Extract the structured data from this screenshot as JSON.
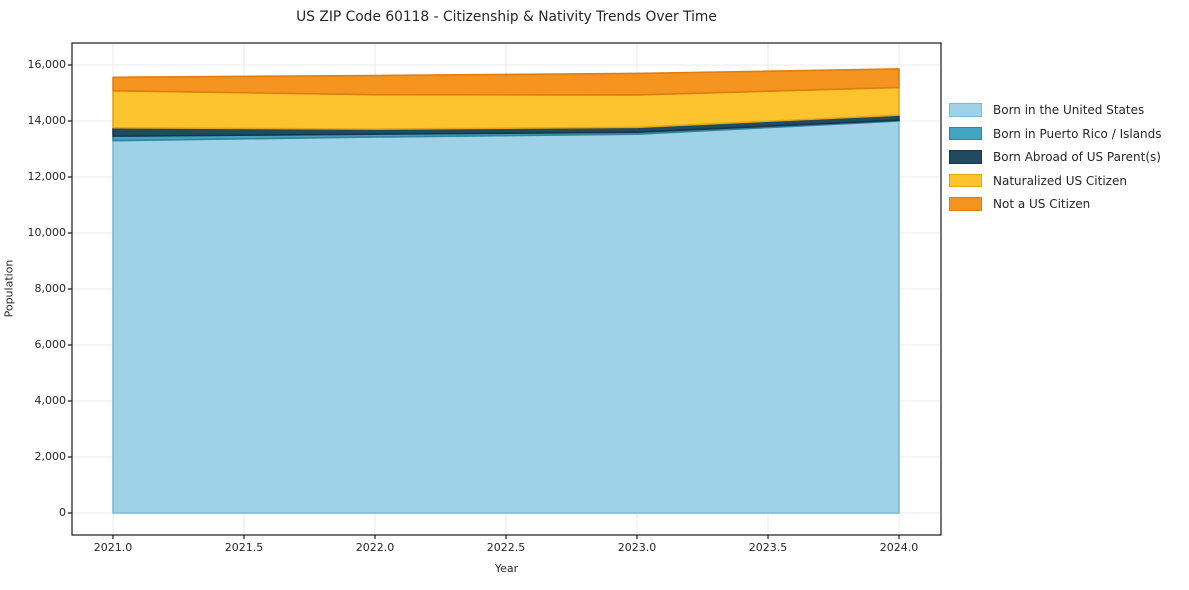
{
  "chart_data": {
    "type": "area",
    "stacked": true,
    "title": "US ZIP Code 60118 - Citizenship & Nativity Trends Over Time",
    "xlabel": "Year",
    "ylabel": "Population",
    "x": [
      2021,
      2022,
      2023,
      2024
    ],
    "series": [
      {
        "name": "Born in the United States",
        "color": "#9fd2e6",
        "edge": "#7cb9d2",
        "values": [
          13300,
          13430,
          13530,
          14000
        ]
      },
      {
        "name": "Born in Puerto Rico / Islands",
        "color": "#41a4c0",
        "edge": "#2f86a0",
        "values": [
          160,
          100,
          70,
          30
        ]
      },
      {
        "name": "Born Abroad of US Parent(s)",
        "color": "#1f4a5f",
        "edge": "#16374a",
        "values": [
          300,
          180,
          175,
          180
        ]
      },
      {
        "name": "Naturalized US Citizen",
        "color": "#fdc32d",
        "edge": "#e2a719",
        "values": [
          1320,
          1230,
          1155,
          990
        ]
      },
      {
        "name": "Not a US Citizen",
        "color": "#f5941f",
        "edge": "#dd7e12",
        "values": [
          480,
          685,
          770,
          660
        ]
      }
    ],
    "xticks": [
      2021.0,
      2021.5,
      2022.0,
      2022.5,
      2023.0,
      2023.5,
      2024.0
    ],
    "xtick_labels": [
      "2021.0",
      "2021.5",
      "2022.0",
      "2022.5",
      "2023.0",
      "2023.5",
      "2024.0"
    ],
    "yticks": [
      0,
      2000,
      4000,
      6000,
      8000,
      10000,
      12000,
      14000,
      16000
    ],
    "ytick_labels": [
      "0",
      "2,000",
      "4,000",
      "6,000",
      "8,000",
      "10,000",
      "12,000",
      "14,000",
      "16,000"
    ],
    "xlim": [
      2020.84,
      2024.16
    ],
    "ylim": [
      -790,
      16790
    ],
    "grid": true,
    "legend_position": "right",
    "background_color": "#ffffff",
    "gridline_color": "#ebebeb",
    "spine_color": "#1a1a1a",
    "text_color": "#262626"
  }
}
